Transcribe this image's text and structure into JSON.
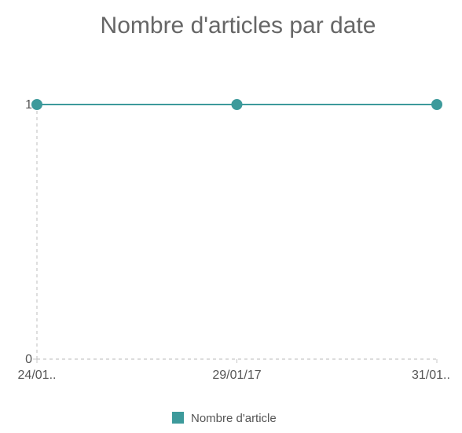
{
  "chart_data": {
    "type": "line",
    "title": "Nombre d'articles par date",
    "x": [
      "24/01..",
      "29/01/17",
      "31/01.."
    ],
    "series": [
      {
        "name": "Nombre d'article",
        "values": [
          1,
          1,
          1
        ],
        "color": "#3d9a9b"
      }
    ],
    "yticks": [
      "0",
      "1"
    ],
    "ylim": [
      0,
      1
    ],
    "xlabel": "",
    "ylabel": "",
    "grid": false,
    "legend_position": "bottom",
    "axis_color": "#c8c8c8"
  }
}
